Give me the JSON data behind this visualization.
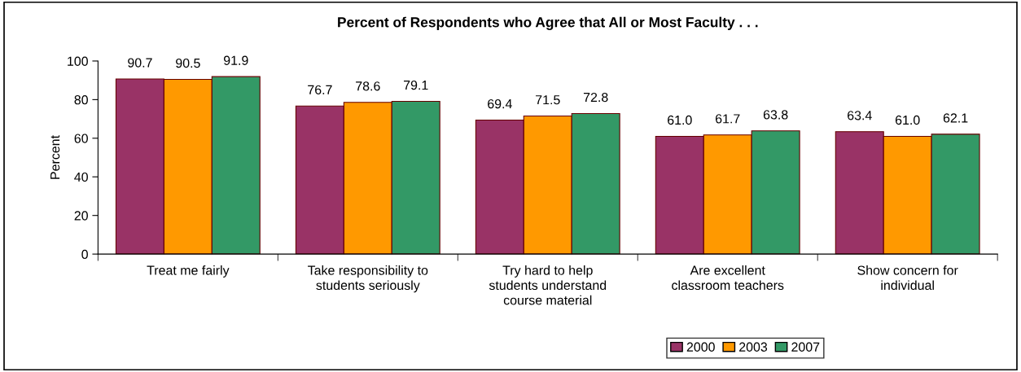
{
  "chart_data": {
    "type": "bar",
    "title": "Percent of Respondents who Agree that All or Most Faculty . . .",
    "ylabel": "Percent",
    "categories": [
      "Treat me fairly",
      "Take responsibility to\nstudents seriously",
      "Try hard to help\nstudents understand\ncourse material",
      "Are excellent\nclassroom teachers",
      "Show concern for\nindividual"
    ],
    "series": [
      {
        "name": "2000",
        "color": "#993366",
        "values": [
          90.7,
          76.7,
          69.4,
          61.0,
          63.4
        ],
        "value_labels": [
          "90.7",
          "76.7",
          "69.4",
          "61.0",
          "63.4"
        ]
      },
      {
        "name": "2003",
        "color": "#ff9900",
        "values": [
          90.5,
          78.6,
          71.5,
          61.7,
          61.0
        ],
        "value_labels": [
          "90.5",
          "78.6",
          "71.5",
          "61.7",
          "61.0"
        ]
      },
      {
        "name": "2007",
        "color": "#339966",
        "values": [
          91.9,
          79.1,
          72.8,
          63.8,
          62.1
        ],
        "value_labels": [
          "91.9",
          "79.1",
          "72.8",
          "63.8",
          "62.1"
        ]
      }
    ],
    "ylim": [
      0,
      100
    ],
    "yticks": [
      0,
      20,
      40,
      60,
      80,
      100
    ],
    "grid": false,
    "legend": "bottom"
  }
}
